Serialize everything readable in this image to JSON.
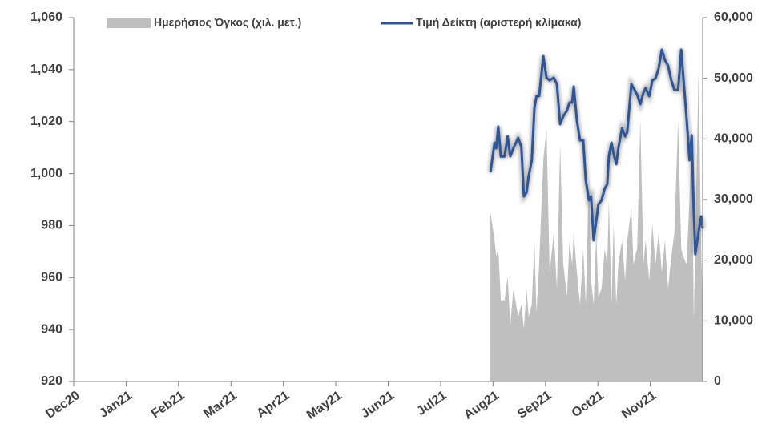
{
  "chart_data": {
    "type": "line",
    "xlim": [
      0,
      12
    ],
    "xticks": [
      {
        "value": 0,
        "label": "Dec20"
      },
      {
        "value": 1,
        "label": "Jan21"
      },
      {
        "value": 2,
        "label": "Feb21"
      },
      {
        "value": 3,
        "label": "Mar21"
      },
      {
        "value": 4,
        "label": "Apr21"
      },
      {
        "value": 5,
        "label": "May21"
      },
      {
        "value": 6,
        "label": "Jun21"
      },
      {
        "value": 7,
        "label": "Jul21"
      },
      {
        "value": 8,
        "label": "Aug21"
      },
      {
        "value": 9,
        "label": "Sep21"
      },
      {
        "value": 10,
        "label": "Oct21"
      },
      {
        "value": 11,
        "label": "Nov21"
      }
    ],
    "ylim": [
      920,
      1060
    ],
    "yticks": [
      920,
      940,
      960,
      980,
      {
        "value": 1000,
        "label": "1,000"
      },
      {
        "value": 1020,
        "label": "1,020"
      },
      {
        "value": 1040,
        "label": "1,040"
      },
      {
        "value": 1060,
        "label": "1,060"
      }
    ],
    "y2lim": [
      0,
      60000
    ],
    "y2ticks": [
      0,
      {
        "value": 10000,
        "label": "10,000"
      },
      {
        "value": 20000,
        "label": "20,000"
      },
      {
        "value": 30000,
        "label": "30,000"
      },
      {
        "value": 40000,
        "label": "40,000"
      },
      {
        "value": 50000,
        "label": "50,000"
      },
      {
        "value": 60000,
        "label": "60,000"
      }
    ],
    "x": [
      7.95,
      8.03,
      8.06,
      8.1,
      8.15,
      8.22,
      8.28,
      8.33,
      8.39,
      8.48,
      8.54,
      8.59,
      8.64,
      8.68,
      8.74,
      8.79,
      8.83,
      8.88,
      8.96,
      9.02,
      9.08,
      9.16,
      9.22,
      9.28,
      9.34,
      9.41,
      9.46,
      9.51,
      9.54,
      9.6,
      9.66,
      9.72,
      9.77,
      9.83,
      9.87,
      9.92,
      9.97,
      10.01,
      10.07,
      10.13,
      10.18,
      10.21,
      10.26,
      10.3,
      10.35,
      10.39,
      10.46,
      10.52,
      10.56,
      10.64,
      10.68,
      10.75,
      10.81,
      10.87,
      10.91,
      10.98,
      11.04,
      11.1,
      11.16,
      11.22,
      11.28,
      11.34,
      11.4,
      11.46,
      11.53,
      11.59,
      11.63,
      11.69,
      11.75,
      11.79,
      11.83,
      11.86,
      11.92,
      11.97,
      12.0
    ],
    "series": [
      {
        "name": "Ημερήσιος Όγκος (χιλ. μετ.)",
        "color": "#bfbfbf",
        "axis": "y2",
        "kind": "area",
        "values": [
          27900,
          23300,
          20600,
          22000,
          13400,
          13400,
          17300,
          9400,
          15300,
          10700,
          12700,
          8700,
          15300,
          10700,
          12700,
          23300,
          11400,
          19300,
          36500,
          41800,
          18000,
          24600,
          15300,
          39100,
          19300,
          14000,
          23300,
          19300,
          24600,
          18000,
          12700,
          21900,
          12700,
          33800,
          16700,
          12700,
          24600,
          14000,
          15300,
          21900,
          19300,
          29900,
          12700,
          25900,
          12700,
          19300,
          23300,
          16700,
          23300,
          28600,
          19300,
          21900,
          43100,
          19300,
          23300,
          16700,
          25900,
          19300,
          24600,
          18000,
          23300,
          15300,
          20600,
          24600,
          43100,
          21900,
          20600,
          19300,
          29900,
          43100,
          10000,
          23300,
          51000,
          23300,
          12700
        ]
      },
      {
        "name": "Τιμή Δείκτη (αριστερή κλίμακα)",
        "color": "#2e5597",
        "kind": "line",
        "values": [
          1000.5,
          1011.9,
          1009.7,
          1018.1,
          1006.6,
          1006.6,
          1014.3,
          1006.6,
          1009.7,
          1013.7,
          1010.3,
          991.2,
          992.8,
          999.0,
          1005.1,
          1025.1,
          1029.8,
          1029.8,
          1045.2,
          1036.9,
          1035.9,
          1036.9,
          1034.4,
          1019.0,
          1022.1,
          1024.2,
          1027.3,
          1027.3,
          1033.5,
          1020.5,
          1012.8,
          1012.8,
          997.4,
          989.7,
          991.2,
          974.3,
          982.0,
          988.1,
          989.7,
          994.3,
          995.9,
          1006.6,
          1011.9,
          1007.6,
          1003.6,
          1009.7,
          1017.4,
          1014.3,
          1015.9,
          1034.4,
          1032.9,
          1030.4,
          1026.7,
          1031.3,
          1032.9,
          1029.8,
          1035.9,
          1036.6,
          1040.6,
          1047.7,
          1043.7,
          1041.5,
          1035.9,
          1032.2,
          1032.2,
          1047.7,
          1037.5,
          1022.1,
          1005.1,
          1014.7,
          985.1,
          969.0,
          977.4,
          983.5,
          978.9
        ]
      }
    ]
  }
}
